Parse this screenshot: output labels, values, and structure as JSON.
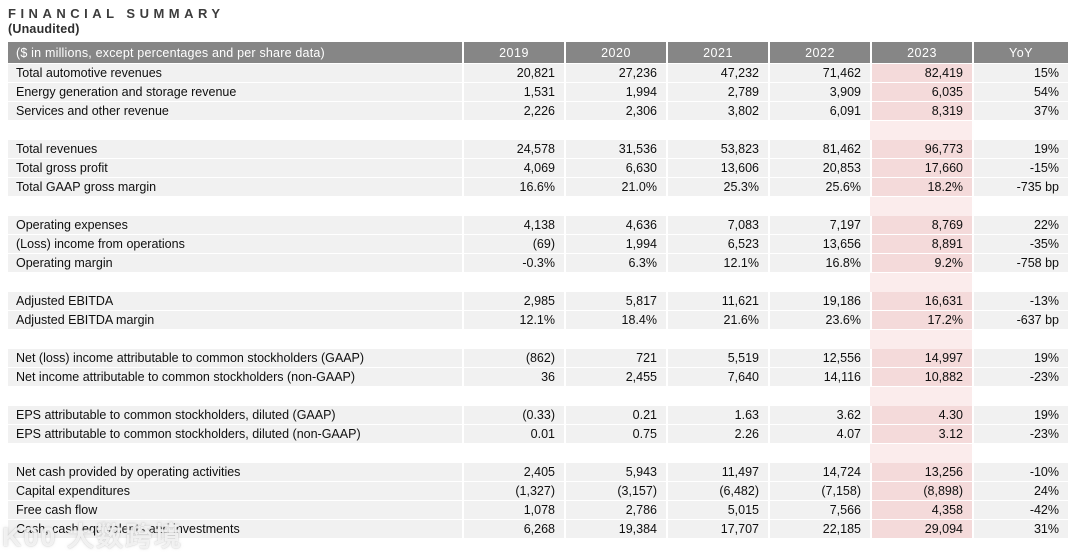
{
  "page": {
    "title": "FINANCIAL SUMMARY",
    "subtitle": "(Unaudited)"
  },
  "watermark": "K00 大数跨境",
  "colors": {
    "header_bg": "#868686",
    "header_text": "#ffffff",
    "row_bg": "#f1f1f1",
    "highlight_2023_bg": "#f4dada",
    "highlight_2023_spacer_bg": "#fbecec",
    "title_color": "#3c3c3c",
    "body_text": "#0f0f0f"
  },
  "chart_data": {
    "type": "table",
    "caption": "($ in millions, except percentages and per share data)",
    "columns": [
      "2019",
      "2020",
      "2021",
      "2022",
      "2023",
      "YoY"
    ],
    "highlight_column": "2023",
    "sections": [
      {
        "rows": [
          {
            "label": "Total automotive revenues",
            "values": [
              "20,821",
              "27,236",
              "47,232",
              "71,462",
              "82,419",
              "15%"
            ]
          },
          {
            "label": "Energy generation and storage revenue",
            "values": [
              "1,531",
              "1,994",
              "2,789",
              "3,909",
              "6,035",
              "54%"
            ]
          },
          {
            "label": "Services and other revenue",
            "values": [
              "2,226",
              "2,306",
              "3,802",
              "6,091",
              "8,319",
              "37%"
            ]
          }
        ]
      },
      {
        "rows": [
          {
            "label": "Total revenues",
            "values": [
              "24,578",
              "31,536",
              "53,823",
              "81,462",
              "96,773",
              "19%"
            ]
          },
          {
            "label": "Total gross profit",
            "values": [
              "4,069",
              "6,630",
              "13,606",
              "20,853",
              "17,660",
              "-15%"
            ]
          },
          {
            "label": "Total GAAP gross margin",
            "values": [
              "16.6%",
              "21.0%",
              "25.3%",
              "25.6%",
              "18.2%",
              "-735 bp"
            ]
          }
        ]
      },
      {
        "rows": [
          {
            "label": "Operating expenses",
            "values": [
              "4,138",
              "4,636",
              "7,083",
              "7,197",
              "8,769",
              "22%"
            ]
          },
          {
            "label": "(Loss) income from operations",
            "values": [
              "(69)",
              "1,994",
              "6,523",
              "13,656",
              "8,891",
              "-35%"
            ]
          },
          {
            "label": "Operating margin",
            "values": [
              "-0.3%",
              "6.3%",
              "12.1%",
              "16.8%",
              "9.2%",
              "-758 bp"
            ]
          }
        ]
      },
      {
        "rows": [
          {
            "label": "Adjusted EBITDA",
            "values": [
              "2,985",
              "5,817",
              "11,621",
              "19,186",
              "16,631",
              "-13%"
            ]
          },
          {
            "label": "Adjusted EBITDA margin",
            "values": [
              "12.1%",
              "18.4%",
              "21.6%",
              "23.6%",
              "17.2%",
              "-637 bp"
            ]
          }
        ]
      },
      {
        "rows": [
          {
            "label": "Net (loss) income attributable to common stockholders (GAAP)",
            "values": [
              "(862)",
              "721",
              "5,519",
              "12,556",
              "14,997",
              "19%"
            ]
          },
          {
            "label": "Net income attributable to common stockholders (non-GAAP)",
            "values": [
              "36",
              "2,455",
              "7,640",
              "14,116",
              "10,882",
              "-23%"
            ]
          }
        ]
      },
      {
        "rows": [
          {
            "label": "EPS attributable to common stockholders, diluted (GAAP)",
            "values": [
              "(0.33)",
              "0.21",
              "1.63",
              "3.62",
              "4.30",
              "19%"
            ]
          },
          {
            "label": "EPS attributable to common stockholders, diluted (non-GAAP)",
            "values": [
              "0.01",
              "0.75",
              "2.26",
              "4.07",
              "3.12",
              "-23%"
            ]
          }
        ]
      },
      {
        "rows": [
          {
            "label": "Net cash provided by operating activities",
            "values": [
              "2,405",
              "5,943",
              "11,497",
              "14,724",
              "13,256",
              "-10%"
            ]
          },
          {
            "label": "Capital expenditures",
            "values": [
              "(1,327)",
              "(3,157)",
              "(6,482)",
              "(7,158)",
              "(8,898)",
              "24%"
            ]
          },
          {
            "label": "Free cash flow",
            "values": [
              "1,078",
              "2,786",
              "5,015",
              "7,566",
              "4,358",
              "-42%"
            ]
          },
          {
            "label": "Cash, cash equivalents and investments",
            "values": [
              "6,268",
              "19,384",
              "17,707",
              "22,185",
              "29,094",
              "31%"
            ]
          }
        ]
      }
    ]
  }
}
